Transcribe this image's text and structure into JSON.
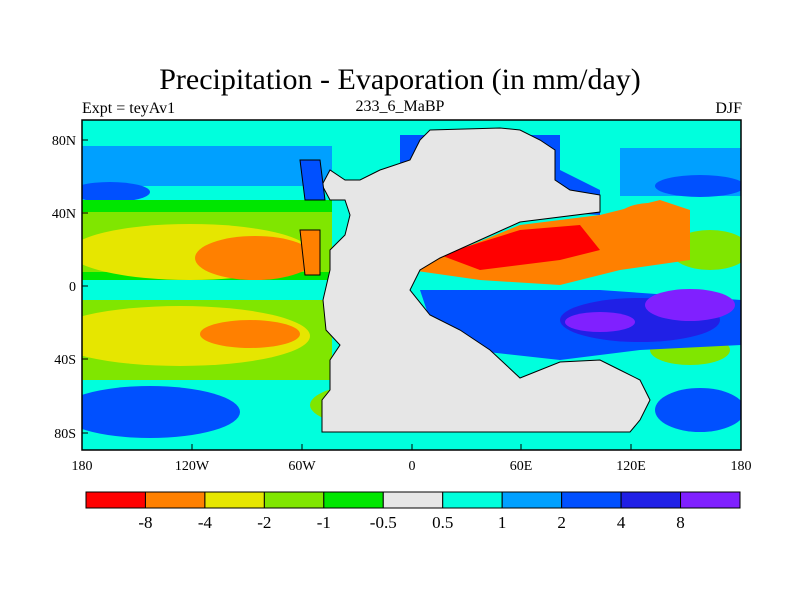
{
  "title": "Precipitation - Evaporation (in mm/day)",
  "left_subtitle": "Expt = teyAv1",
  "center_subtitle": "233_6_MaBP",
  "right_subtitle": "DJF",
  "lat_ticks": [
    "80N",
    "40N",
    "0",
    "40S",
    "80S"
  ],
  "lon_ticks": [
    "180",
    "120W",
    "60W",
    "0",
    "60E",
    "120E",
    "180"
  ],
  "colorbar": {
    "colors": [
      "#ff0000",
      "#ff8000",
      "#e6e600",
      "#80e600",
      "#00e600",
      "#e6e6e6",
      "#00ffdd",
      "#00a0ff",
      "#0050ff",
      "#2020e6",
      "#8020ff"
    ],
    "labels": [
      "-8",
      "-4",
      "-2",
      "-1",
      "-0.5",
      "0.5",
      "1",
      "2",
      "4",
      "8"
    ]
  },
  "palette": {
    "land": "#e6e6e6",
    "frame": "#000000"
  }
}
